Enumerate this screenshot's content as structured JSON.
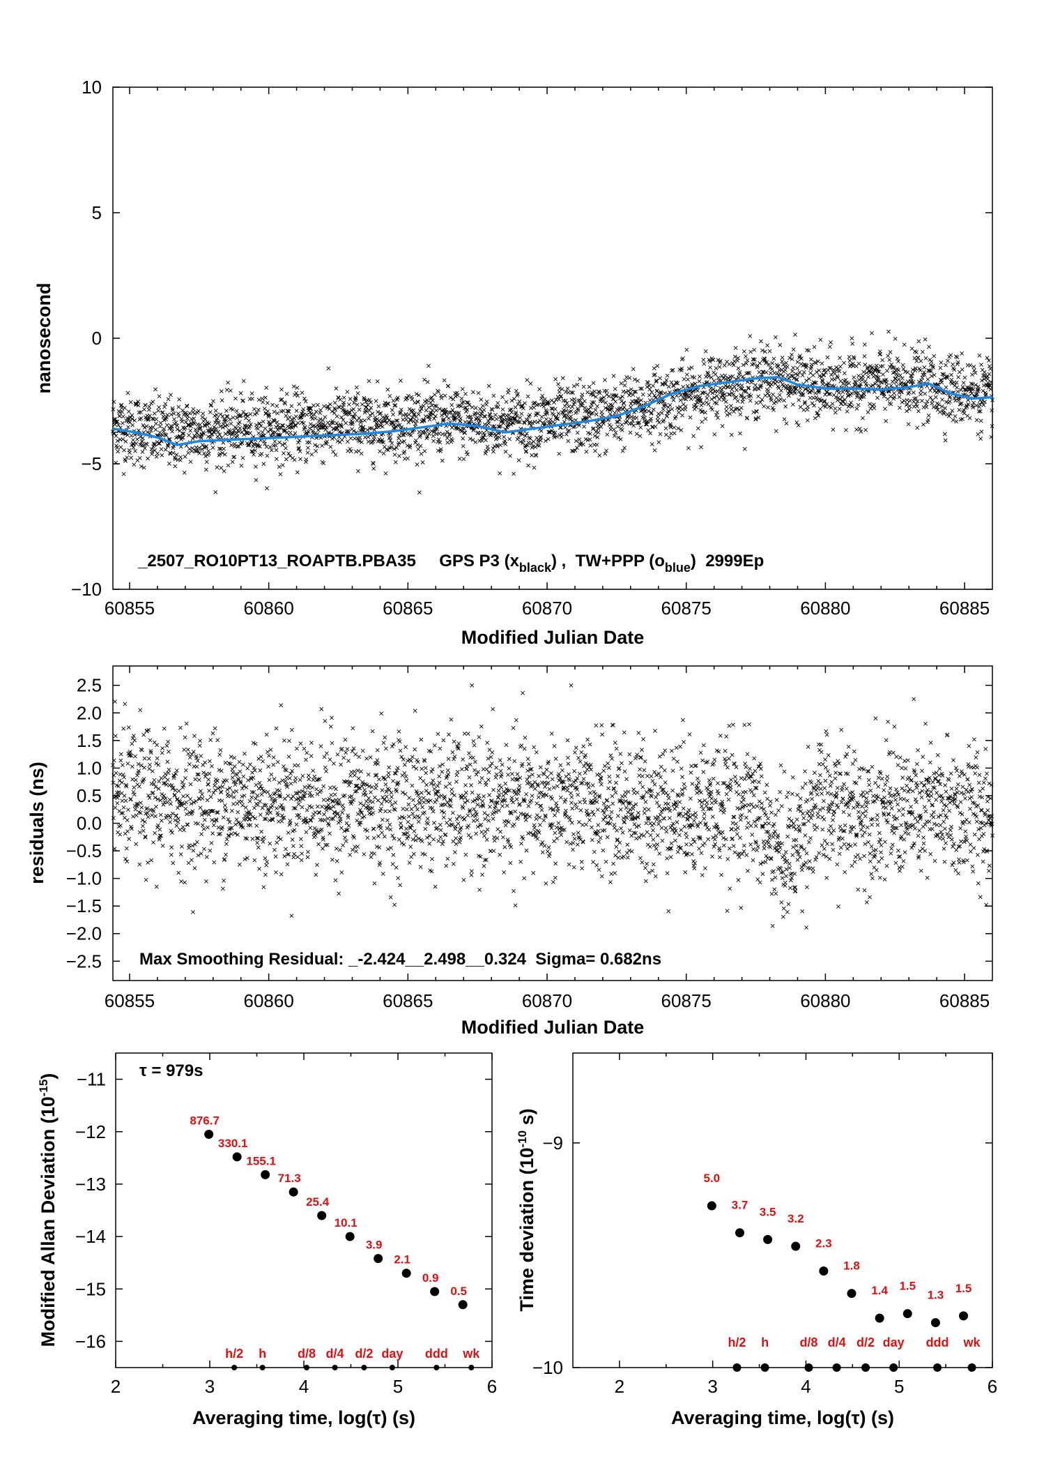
{
  "chart_data": [
    {
      "type": "scatter",
      "title": "_2507_RO10PT13_ROAPTB.PBA35     GPS P3 (x",
      "title_sub_black": "black",
      "title_mid": ") ,  TW+PPP (o",
      "title_sub_blue": "blue",
      "title_end": ")  2999Ep",
      "xlabel": "Modified Julian Date",
      "ylabel": "nanosecond",
      "xlim": [
        60854.4,
        60886
      ],
      "ylim": [
        -10,
        10
      ],
      "xticks": [
        "60855",
        "60860",
        "60865",
        "60870",
        "60875",
        "60880",
        "60885"
      ],
      "yticks": [
        "10",
        "5",
        "0",
        "−5",
        "−10"
      ],
      "series": [
        {
          "name": "GPS P3",
          "marker": "x",
          "color": "#000000",
          "trend_x": [
            60854.4,
            60856,
            60858,
            60860,
            60862,
            60864,
            60866,
            60868,
            60870,
            60872,
            60874,
            60876,
            60878,
            60880,
            60882,
            60884,
            60886
          ],
          "trend_y": [
            -3.5,
            -3.8,
            -3.7,
            -3.6,
            -3.5,
            -3.4,
            -3.3,
            -3.4,
            -3.3,
            -3.1,
            -2.6,
            -2.0,
            -1.6,
            -2.0,
            -1.8,
            -1.9,
            -2.3
          ],
          "spread_ns": 0.7,
          "count": 2999
        },
        {
          "name": "TW+PPP",
          "type": "line",
          "color": "#1e88e5",
          "x": [
            60854.4,
            60855.2,
            60856,
            60856.7,
            60857.5,
            60858.5,
            60859.5,
            60860.5,
            60861.5,
            60862.5,
            60863.5,
            60864.5,
            60865.5,
            60866.5,
            60867.5,
            60868.5,
            60869.5,
            60870.5,
            60871.5,
            60872.5,
            60873.5,
            60874.5,
            60875.5,
            60876.5,
            60877.5,
            60878.3,
            60879,
            60880,
            60881,
            60882,
            60883,
            60883.7,
            60884.5,
            60885.3,
            60886
          ],
          "y": [
            -3.6,
            -3.75,
            -3.95,
            -4.25,
            -4.1,
            -4.05,
            -4.0,
            -3.95,
            -3.9,
            -3.85,
            -3.8,
            -3.7,
            -3.55,
            -3.4,
            -3.5,
            -3.75,
            -3.6,
            -3.45,
            -3.3,
            -3.1,
            -2.7,
            -2.2,
            -1.9,
            -1.75,
            -1.6,
            -1.55,
            -1.85,
            -2.0,
            -2.0,
            -2.05,
            -1.95,
            -1.8,
            -2.2,
            -2.4,
            -2.35
          ]
        }
      ]
    },
    {
      "type": "scatter",
      "xlabel": "Modified Julian Date",
      "ylabel": "residuals (ns)",
      "xlim": [
        60854.4,
        60886
      ],
      "ylim": [
        -2.85,
        2.85
      ],
      "xticks": [
        "60855",
        "60860",
        "60865",
        "60870",
        "60875",
        "60880",
        "60885"
      ],
      "yticks": [
        "2.5",
        "2.0",
        "1.5",
        "1.0",
        "0.5",
        "0.0",
        "−0.5",
        "−1.0",
        "−1.5",
        "−2.0",
        "−2.5"
      ],
      "annotation": "Max Smoothing Residual: _-2.424__2.498__0.324  Sigma= 0.682ns",
      "series": [
        {
          "marker": "x",
          "color": "#000000",
          "sigma": 0.682,
          "max": 2.498,
          "min": -2.424,
          "count": 2999
        }
      ]
    },
    {
      "type": "scatter",
      "xlabel": "Averaging time, log(τ) (s)",
      "ylabel": "Modified Allan Deviation (10",
      "ylabel_sup": "-15",
      "ylabel_end": ")",
      "tau_note": "τ = 979s",
      "xlim": [
        2,
        6
      ],
      "ylim": [
        -16.5,
        -10.5
      ],
      "xticks": [
        "2",
        "3",
        "4",
        "5",
        "6"
      ],
      "yticks": [
        "−11",
        "−12",
        "−13",
        "−14",
        "−15",
        "−16"
      ],
      "x": [
        2.99,
        3.29,
        3.59,
        3.89,
        4.19,
        4.49,
        4.79,
        5.09,
        5.39,
        5.69
      ],
      "y": [
        -12.05,
        -12.48,
        -12.82,
        -13.15,
        -13.6,
        -14.0,
        -14.42,
        -14.7,
        -15.05,
        -15.3
      ],
      "point_labels": [
        "876.7",
        "330.1",
        "155.1",
        "71.3",
        "25.4",
        "10.1",
        "3.9",
        "2.1",
        "0.9",
        "0.5"
      ],
      "time_marks": {
        "labels": [
          "h/2",
          "h",
          "d/8",
          "d/4",
          "d/2",
          "day",
          "ddd",
          "wk"
        ],
        "x": [
          3.26,
          3.56,
          4.03,
          4.33,
          4.64,
          4.94,
          5.41,
          5.78
        ]
      }
    },
    {
      "type": "scatter",
      "xlabel": "Averaging time, log(τ) (s)",
      "ylabel": "Time deviation (10",
      "ylabel_sup": "-10",
      "ylabel_end": " s)",
      "xlim": [
        1.5,
        6
      ],
      "ylim": [
        -10,
        -8.6
      ],
      "xticks": [
        "2",
        "3",
        "4",
        "5",
        "6"
      ],
      "yticks": [
        "−9",
        "−10"
      ],
      "x": [
        2.99,
        3.29,
        3.59,
        3.89,
        4.19,
        4.49,
        4.79,
        5.09,
        5.39,
        5.69
      ],
      "y": [
        -9.28,
        -9.4,
        -9.43,
        -9.46,
        -9.57,
        -9.67,
        -9.78,
        -9.76,
        -9.8,
        -9.77
      ],
      "point_labels": [
        "5.0",
        "3.7",
        "3.5",
        "3.2",
        "2.3",
        "1.8",
        "1.4",
        "1.5",
        "1.3",
        "1.5"
      ],
      "time_marks": {
        "labels": [
          "h/2",
          "h",
          "d/8",
          "d/4",
          "d/2",
          "day",
          "ddd",
          "wk"
        ],
        "x": [
          3.26,
          3.56,
          4.03,
          4.33,
          4.64,
          4.94,
          5.41,
          5.78
        ]
      }
    }
  ]
}
